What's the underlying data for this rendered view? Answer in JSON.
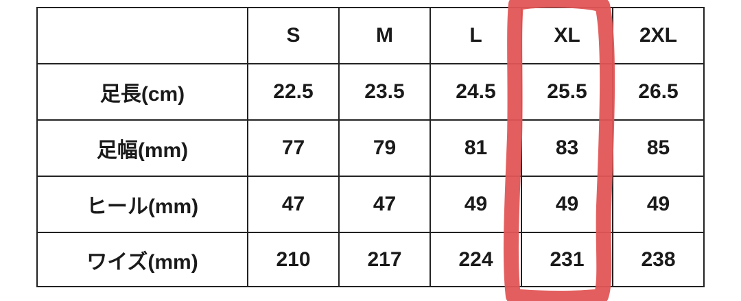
{
  "columns": [
    "",
    "S",
    "M",
    "L",
    "XL",
    "2XL"
  ],
  "rows": [
    {
      "label": "足長(cm)",
      "values": [
        "22.5",
        "23.5",
        "24.5",
        "25.5",
        "26.5"
      ]
    },
    {
      "label": "足幅(mm)",
      "values": [
        "77",
        "79",
        "81",
        "83",
        "85"
      ]
    },
    {
      "label": "ヒール(mm)",
      "values": [
        "47",
        "47",
        "49",
        "49",
        "49"
      ]
    },
    {
      "label": "ワイズ(mm)",
      "values": [
        "210",
        "217",
        "224",
        "231",
        "238"
      ]
    }
  ],
  "highlight": {
    "column": "XL",
    "color": "#e25656"
  }
}
